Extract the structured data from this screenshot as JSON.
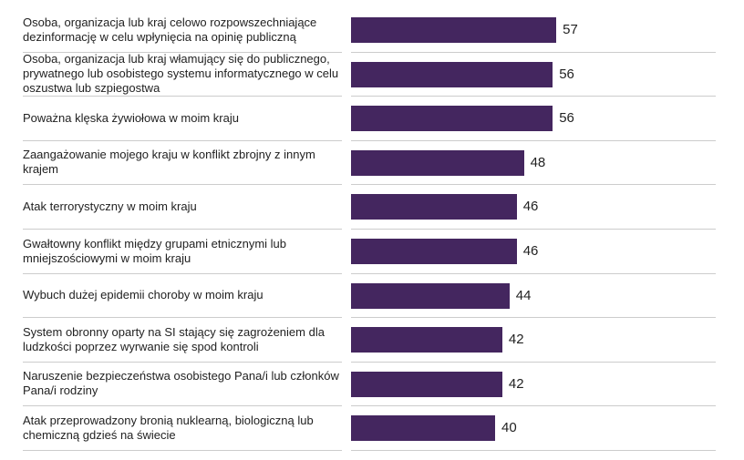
{
  "chart_data": {
    "type": "bar",
    "orientation": "horizontal",
    "color": "#44265f",
    "categories": [
      "Osoba, organizacja lub kraj celowo rozpowszechniające dezinformację w celu wpłynięcia na opinię publiczną",
      "Osoba, organizacja lub kraj włamujący się do publicznego, prywatnego lub osobistego systemu informatycznego w celu oszustwa lub szpiegostwa",
      "Poważna klęska żywiołowa w moim kraju",
      "Zaangażowanie mojego kraju w konflikt zbrojny z innym krajem",
      "Atak terrorystyczny w moim kraju",
      "Gwałtowny konflikt między grupami etnicznymi lub mniejszościowymi w moim kraju",
      "Wybuch dużej epidemii choroby w moim kraju",
      "System obronny oparty na SI stający się zagrożeniem dla ludzkości poprzez wyrwanie się spod kontroli",
      "Naruszenie bezpieczeństwa osobistego Pana/i lub członków Pana/i rodziny",
      "Atak przeprowadzony bronią nuklearną, biologiczną lub chemiczną gdzieś na świecie"
    ],
    "values": [
      57,
      56,
      56,
      48,
      46,
      46,
      44,
      42,
      42,
      40
    ]
  }
}
